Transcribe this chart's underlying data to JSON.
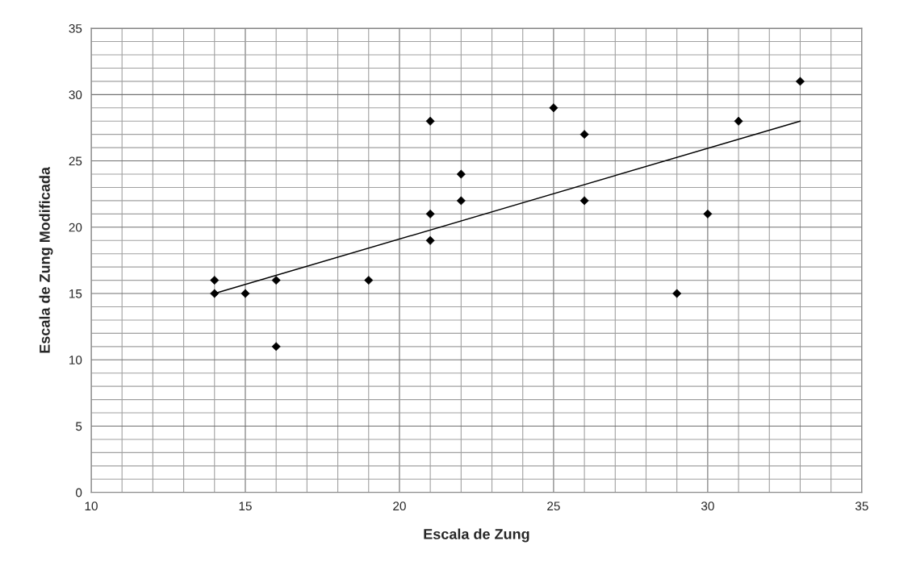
{
  "chart_data": {
    "type": "scatter",
    "xlabel": "Escala de Zung",
    "ylabel": "Escala de Zung Modificada",
    "xlim": [
      10,
      35
    ],
    "ylim": [
      0,
      35
    ],
    "xticks": [
      10,
      {
        "value": 11,
        "label": null
      },
      {
        "value": 12,
        "label": null
      },
      {
        "value": 13,
        "label": null
      },
      {
        "value": 14,
        "label": null
      },
      15,
      {
        "value": 16,
        "label": null
      },
      {
        "value": 17,
        "label": null
      },
      {
        "value": 18,
        "label": null
      },
      {
        "value": 19,
        "label": null
      },
      20,
      {
        "value": 21,
        "label": null
      },
      {
        "value": 22,
        "label": null
      },
      {
        "value": 23,
        "label": null
      },
      {
        "value": 24,
        "label": null
      },
      25,
      {
        "value": 26,
        "label": null
      },
      {
        "value": 27,
        "label": null
      },
      {
        "value": 28,
        "label": null
      },
      {
        "value": 29,
        "label": null
      },
      30,
      {
        "value": 31,
        "label": null
      },
      {
        "value": 32,
        "label": null
      },
      {
        "value": 33,
        "label": null
      },
      {
        "value": 34,
        "label": null
      },
      35
    ],
    "yticks": [
      0,
      {
        "value": 1,
        "label": null
      },
      {
        "value": 2,
        "label": null
      },
      {
        "value": 3,
        "label": null
      },
      {
        "value": 4,
        "label": null
      },
      5,
      {
        "value": 6,
        "label": null
      },
      {
        "value": 7,
        "label": null
      },
      {
        "value": 8,
        "label": null
      },
      {
        "value": 9,
        "label": null
      },
      10,
      {
        "value": 11,
        "label": null
      },
      {
        "value": 12,
        "label": null
      },
      {
        "value": 13,
        "label": null
      },
      {
        "value": 14,
        "label": null
      },
      15,
      {
        "value": 16,
        "label": null
      },
      {
        "value": 17,
        "label": null
      },
      {
        "value": 18,
        "label": null
      },
      {
        "value": 19,
        "label": null
      },
      20,
      {
        "value": 21,
        "label": null
      },
      {
        "value": 22,
        "label": null
      },
      {
        "value": 23,
        "label": null
      },
      {
        "value": 24,
        "label": null
      },
      25,
      {
        "value": 26,
        "label": null
      },
      {
        "value": 27,
        "label": null
      },
      {
        "value": 28,
        "label": null
      },
      {
        "value": 29,
        "label": null
      },
      30,
      {
        "value": 31,
        "label": null
      },
      {
        "value": 32,
        "label": null
      },
      {
        "value": 33,
        "label": null
      },
      {
        "value": 34,
        "label": null
      },
      35
    ],
    "grid": true,
    "marker": "diamond",
    "series": [
      {
        "color": "#000000",
        "x": [
          14,
          14,
          15,
          16,
          16,
          19,
          21,
          21,
          21,
          22,
          22,
          25,
          26,
          26,
          29,
          30,
          31,
          33
        ],
        "values": [
          16,
          15,
          15,
          16,
          11,
          16,
          28,
          21,
          19,
          24,
          22,
          29,
          27,
          22,
          15,
          21,
          28,
          31
        ]
      },
      {
        "type": "line",
        "color": "#000000",
        "marker": "none",
        "x": [
          14,
          33
        ],
        "values": [
          15,
          28
        ]
      }
    ]
  }
}
